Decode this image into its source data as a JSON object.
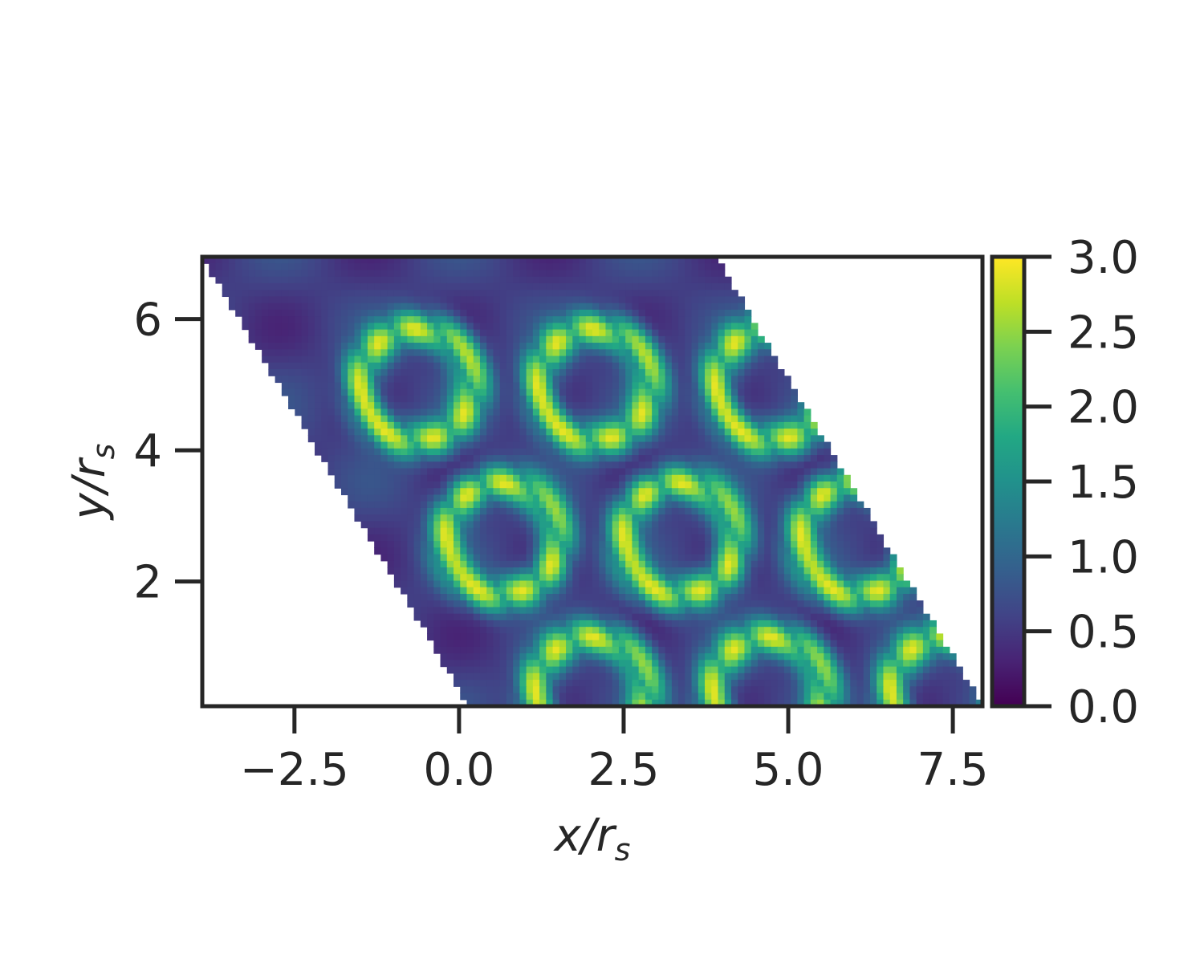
{
  "chart_data": {
    "type": "heatmap",
    "title": "",
    "xlabel": {
      "base": "x/r",
      "sub": "s"
    },
    "ylabel": {
      "base": "y/r",
      "sub": "s"
    },
    "xlim": [
      -3.9,
      7.95
    ],
    "ylim": [
      0.1,
      6.95
    ],
    "x_ticks": [
      -2.5,
      0.0,
      2.5,
      5.0,
      7.5
    ],
    "x_tick_labels": [
      "−2.5",
      "0.0",
      "2.5",
      "5.0",
      "7.5"
    ],
    "y_ticks": [
      2,
      4,
      6
    ],
    "y_tick_labels": [
      "2",
      "4",
      "6"
    ],
    "colorbar": {
      "range": [
        0.0,
        3.0
      ],
      "colormap": "viridis",
      "ticks": [
        0.0,
        0.5,
        1.0,
        1.5,
        2.0,
        2.5,
        3.0
      ],
      "tick_labels": [
        "0.0",
        "0.5",
        "1.0",
        "1.5",
        "2.0",
        "2.5",
        "3.0"
      ]
    },
    "lattice": {
      "shape": "rhombus",
      "corners": [
        [
          0.15,
          0.1
        ],
        [
          7.95,
          0.1
        ],
        [
          3.9,
          6.95
        ],
        [
          -3.9,
          6.95
        ]
      ],
      "spot_centers": [
        [
          0.65,
          2.65
        ],
        [
          3.35,
          2.65
        ],
        [
          6.05,
          2.65
        ],
        [
          2.05,
          5.0
        ],
        [
          4.75,
          5.0
        ],
        [
          -0.65,
          5.0
        ],
        [
          2.0,
          0.3
        ],
        [
          4.7,
          0.3
        ],
        [
          7.4,
          0.3
        ]
      ],
      "density_min": 0.0,
      "density_max": 2.9
    }
  }
}
